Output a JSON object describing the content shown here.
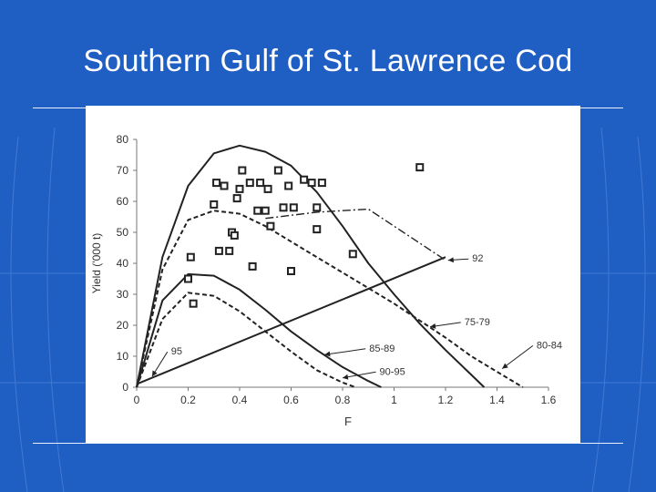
{
  "slide": {
    "title": "Southern Gulf of St. Lawrence Cod",
    "colors": {
      "background": "#1f5fc4",
      "title": "#ffffff",
      "panel": "#ffffff"
    }
  },
  "chart_data": {
    "type": "line",
    "title": "",
    "xlabel": "F",
    "ylabel": "Yield ('000 t)",
    "xlim": [
      0,
      1.6
    ],
    "ylim": [
      0,
      80
    ],
    "x_ticks": [
      "0",
      "0.2",
      "0.4",
      "0.6",
      "0.8",
      "1",
      "1.2",
      "1.4",
      "1.6"
    ],
    "y_ticks": [
      "0",
      "10",
      "20",
      "30",
      "40",
      "50",
      "60",
      "70",
      "80"
    ],
    "grid": false,
    "series": [
      {
        "name": "75-79",
        "style": "solid",
        "x": [
          0,
          0.1,
          0.2,
          0.3,
          0.4,
          0.5,
          0.6,
          0.7,
          0.8,
          0.9,
          1.0,
          1.1,
          1.2,
          1.3,
          1.35
        ],
        "y": [
          0,
          42,
          65,
          75.5,
          78,
          76,
          71.5,
          63,
          52,
          40,
          30,
          20.5,
          12,
          4,
          0
        ]
      },
      {
        "name": "80-84",
        "style": "dashed",
        "x": [
          0,
          0.1,
          0.2,
          0.3,
          0.4,
          0.5,
          0.6,
          0.7,
          0.8,
          0.9,
          1.0,
          1.1,
          1.2,
          1.3,
          1.4,
          1.5
        ],
        "y": [
          0,
          38,
          54,
          57,
          56,
          52,
          47,
          42,
          37,
          32,
          27,
          21.5,
          16,
          10,
          5,
          0
        ]
      },
      {
        "name": "85-89",
        "style": "solid",
        "x": [
          0,
          0.1,
          0.2,
          0.3,
          0.4,
          0.5,
          0.6,
          0.7,
          0.8,
          0.9,
          0.95
        ],
        "y": [
          0,
          28,
          36.5,
          36,
          31.5,
          25,
          18,
          12,
          6.5,
          2,
          0
        ]
      },
      {
        "name": "90-95",
        "style": "dashed",
        "x": [
          0,
          0.1,
          0.2,
          0.3,
          0.4,
          0.5,
          0.6,
          0.7,
          0.8,
          0.85
        ],
        "y": [
          0,
          22,
          30.5,
          29.5,
          24.5,
          18,
          11.5,
          5.5,
          1.5,
          0
        ]
      },
      {
        "name": "92",
        "style": "dash-dot",
        "x": [
          0.5,
          0.7,
          0.9,
          1.0,
          1.2
        ],
        "y": [
          54.5,
          56.5,
          57.5,
          52,
          41
        ]
      },
      {
        "name": "95",
        "style": "solid",
        "x": [
          0,
          1.2
        ],
        "y": [
          1,
          42
        ]
      }
    ],
    "observed_points": {
      "x": [
        0.2,
        0.21,
        0.22,
        0.3,
        0.31,
        0.32,
        0.34,
        0.36,
        0.37,
        0.38,
        0.39,
        0.4,
        0.41,
        0.44,
        0.45,
        0.47,
        0.48,
        0.5,
        0.51,
        0.52,
        0.55,
        0.57,
        0.59,
        0.6,
        0.61,
        0.65,
        0.68,
        0.7,
        0.7,
        0.72,
        0.84,
        1.1
      ],
      "y": [
        35,
        42,
        27,
        59,
        66,
        44,
        65,
        44,
        50,
        49,
        61,
        64,
        70,
        66,
        39,
        57,
        66,
        57,
        64,
        52,
        70,
        58,
        65,
        37.5,
        58,
        67,
        66,
        51,
        58,
        66,
        43,
        71
      ]
    },
    "annotations": [
      {
        "label": "95",
        "tx": 0.13,
        "ty": 12,
        "ax": 0.06,
        "ay": 3.5
      },
      {
        "label": "85-89",
        "tx": 0.9,
        "ty": 13,
        "ax": 0.73,
        "ay": 10.5
      },
      {
        "label": "90-95",
        "tx": 0.94,
        "ty": 5.5,
        "ax": 0.8,
        "ay": 3
      },
      {
        "label": "75-79",
        "tx": 1.27,
        "ty": 21.5,
        "ax": 1.14,
        "ay": 19.5
      },
      {
        "label": "80-84",
        "tx": 1.55,
        "ty": 14,
        "ax": 1.42,
        "ay": 6
      },
      {
        "label": "92",
        "tx": 1.3,
        "ty": 42,
        "ax": 1.21,
        "ay": 41
      }
    ]
  }
}
